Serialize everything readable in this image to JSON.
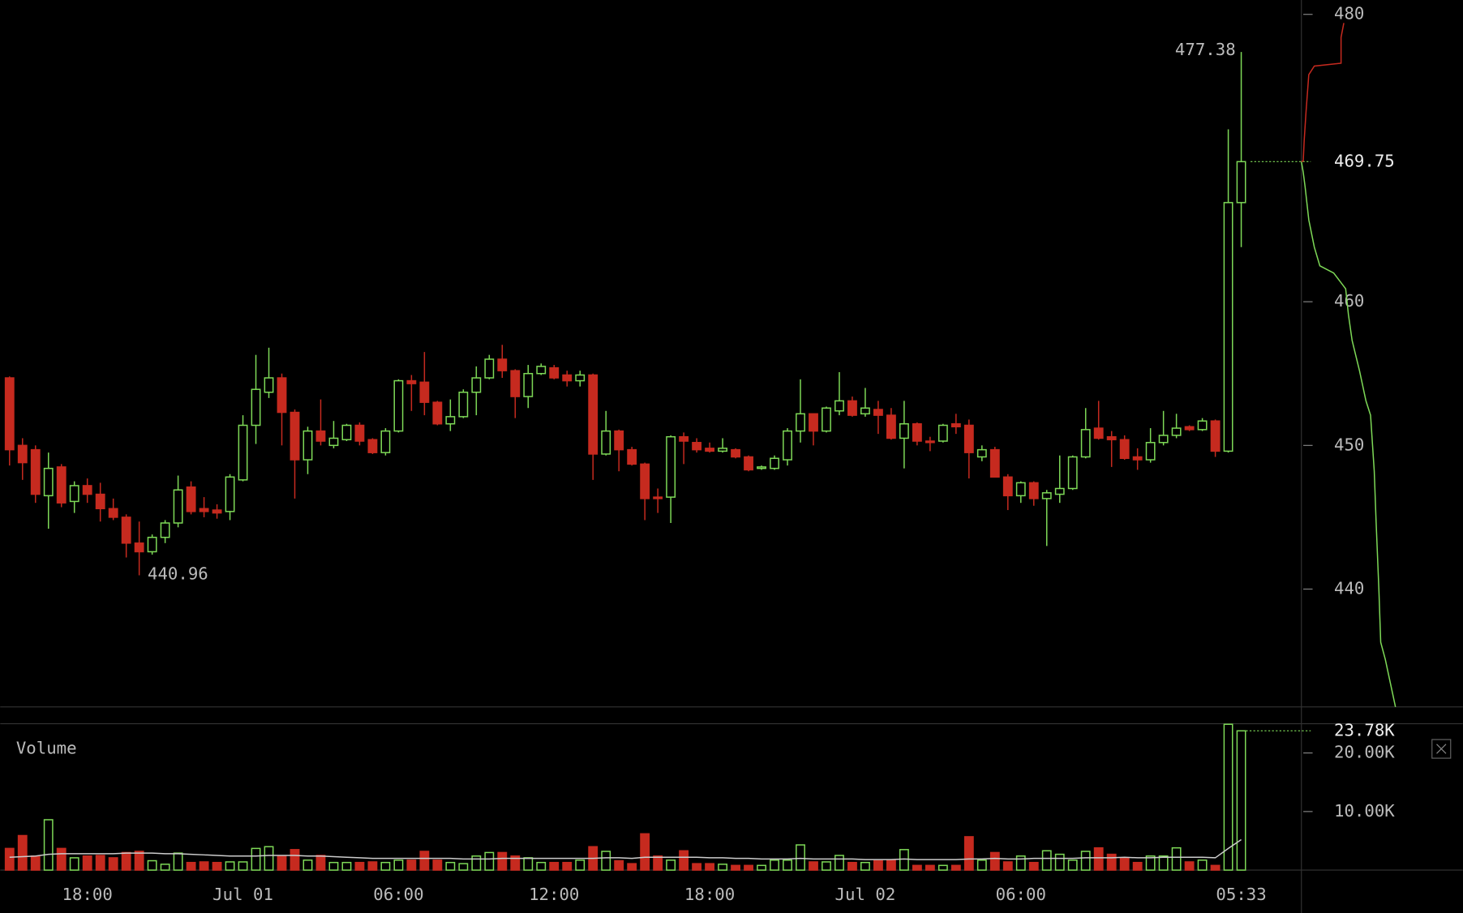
{
  "chart_data": {
    "type": "candlestick",
    "categories": [
      null,
      null,
      null,
      null,
      null,
      null,
      "18:00",
      null,
      null,
      null,
      null,
      null,
      null,
      null,
      null,
      null,
      null,
      null,
      "Jul 01",
      null,
      null,
      null,
      null,
      null,
      null,
      null,
      null,
      null,
      null,
      null,
      "06:00",
      null,
      null,
      null,
      null,
      null,
      null,
      null,
      null,
      null,
      null,
      null,
      "12:00",
      null,
      null,
      null,
      null,
      null,
      null,
      null,
      null,
      null,
      null,
      null,
      "18:00",
      null,
      null,
      null,
      null,
      null,
      null,
      null,
      null,
      null,
      null,
      null,
      "Jul 02",
      null,
      null,
      null,
      null,
      null,
      null,
      null,
      null,
      null,
      null,
      null,
      "06:00",
      null,
      null,
      null,
      null,
      null,
      null,
      null,
      null,
      null,
      null,
      null,
      null,
      null,
      null,
      null,
      null,
      "05:33"
    ],
    "open": [
      454.7,
      450.0,
      449.7,
      446.5,
      448.5,
      446.1,
      447.2,
      446.6,
      445.6,
      445.0,
      443.2,
      442.6,
      443.6,
      444.6,
      447.1,
      445.6,
      445.5,
      445.4,
      447.6,
      451.4,
      453.7,
      454.7,
      452.3,
      449.0,
      451.0,
      450.0,
      450.4,
      451.4,
      450.4,
      449.5,
      451.0,
      454.5,
      454.4,
      453.0,
      451.5,
      452.0,
      453.7,
      454.7,
      456.0,
      455.2,
      453.4,
      455.0,
      455.4,
      454.9,
      454.5,
      454.9,
      449.4,
      451.0,
      449.7,
      448.7,
      446.4,
      446.4,
      450.6,
      450.2,
      449.8,
      449.6,
      449.7,
      449.2,
      448.4,
      448.4,
      449.0,
      451.0,
      452.2,
      451.0,
      452.4,
      453.1,
      452.2,
      452.5,
      452.1,
      450.5,
      451.5,
      450.3,
      450.3,
      451.5,
      451.4,
      449.2,
      449.7,
      447.8,
      446.5,
      447.4,
      446.3,
      446.6,
      447.0,
      449.2,
      451.2,
      450.6,
      450.4,
      449.2,
      449.0,
      450.2,
      450.7,
      451.3,
      451.1,
      451.7,
      449.6,
      466.9
    ],
    "high": [
      454.8,
      450.5,
      450.0,
      449.5,
      448.7,
      447.5,
      447.7,
      447.4,
      446.3,
      445.2,
      444.7,
      443.8,
      444.8,
      447.9,
      447.5,
      446.4,
      445.9,
      448.0,
      452.1,
      456.3,
      456.8,
      455.0,
      452.5,
      451.3,
      453.2,
      451.7,
      451.5,
      451.6,
      450.5,
      451.2,
      454.6,
      454.9,
      456.5,
      453.1,
      453.2,
      453.9,
      455.5,
      456.3,
      457.0,
      455.3,
      455.6,
      455.7,
      455.6,
      455.2,
      455.2,
      455.0,
      452.4,
      451.1,
      449.9,
      448.8,
      447.0,
      450.7,
      450.9,
      450.5,
      450.2,
      450.5,
      449.8,
      449.3,
      448.6,
      449.3,
      451.2,
      454.6,
      452.2,
      452.7,
      455.1,
      453.4,
      454.0,
      453.1,
      452.6,
      453.1,
      451.6,
      450.6,
      451.5,
      452.2,
      451.8,
      450.0,
      449.9,
      448.0,
      447.5,
      447.5,
      446.9,
      449.3,
      449.3,
      452.6,
      453.1,
      451.0,
      450.7,
      449.8,
      451.2,
      452.4,
      452.2,
      451.4,
      451.9,
      451.8,
      472.0,
      477.38
    ],
    "low": [
      448.6,
      447.6,
      446.0,
      444.2,
      445.7,
      445.3,
      446.0,
      444.7,
      444.8,
      442.2,
      440.96,
      442.4,
      443.2,
      444.3,
      445.2,
      445.0,
      444.9,
      444.8,
      447.5,
      450.1,
      453.3,
      450.0,
      446.3,
      448.0,
      450.0,
      449.8,
      450.3,
      450.0,
      449.4,
      449.3,
      450.9,
      452.4,
      452.1,
      451.4,
      451.0,
      451.9,
      452.1,
      454.6,
      454.7,
      451.9,
      452.6,
      454.9,
      454.6,
      454.1,
      454.1,
      447.6,
      449.3,
      448.2,
      448.6,
      444.8,
      445.3,
      444.6,
      448.7,
      449.5,
      449.5,
      449.5,
      449.1,
      448.2,
      448.3,
      448.3,
      448.6,
      450.2,
      450.0,
      450.9,
      452.1,
      452.0,
      452.0,
      450.8,
      450.4,
      448.4,
      450.0,
      449.6,
      450.2,
      450.8,
      447.7,
      448.9,
      447.8,
      445.5,
      446.0,
      445.8,
      443.0,
      446.0,
      446.9,
      449.1,
      450.4,
      448.5,
      449.0,
      448.3,
      448.8,
      450.0,
      450.5,
      451.0,
      451.0,
      449.2,
      449.5,
      463.8
    ],
    "close": [
      449.7,
      448.8,
      446.6,
      448.4,
      446.0,
      447.2,
      446.6,
      445.6,
      445.0,
      443.2,
      442.6,
      443.6,
      444.6,
      446.9,
      445.4,
      445.4,
      445.3,
      447.8,
      451.4,
      453.9,
      454.7,
      452.3,
      449.0,
      451.0,
      450.3,
      450.5,
      451.4,
      450.3,
      449.5,
      451.0,
      454.5,
      454.3,
      453.0,
      451.5,
      452.0,
      453.7,
      454.7,
      456.0,
      455.2,
      453.4,
      455.0,
      455.5,
      454.7,
      454.5,
      454.9,
      449.4,
      451.0,
      449.7,
      448.7,
      446.3,
      446.3,
      450.6,
      450.3,
      449.7,
      449.6,
      449.8,
      449.2,
      448.3,
      448.5,
      449.1,
      451.0,
      452.2,
      451.0,
      452.6,
      453.1,
      452.1,
      452.6,
      452.1,
      450.5,
      451.5,
      450.3,
      450.2,
      451.4,
      451.3,
      449.5,
      449.7,
      447.8,
      446.5,
      447.4,
      446.3,
      446.7,
      447.0,
      449.2,
      451.1,
      450.5,
      450.4,
      449.1,
      449.0,
      450.2,
      450.7,
      451.2,
      451.1,
      451.7,
      449.6,
      466.9,
      469.75
    ],
    "up_color": "#7ed957",
    "down_color": "#c62a1f",
    "ylim": [
      431.8,
      481
    ],
    "yticks": [
      440,
      450,
      460,
      480
    ],
    "volume": {
      "title": "Volume",
      "values": [
        3700,
        5900,
        2400,
        8600,
        3700,
        2100,
        2400,
        2500,
        2100,
        3000,
        3200,
        1600,
        1000,
        2900,
        1300,
        1400,
        1300,
        1400,
        1400,
        3700,
        4000,
        2400,
        3500,
        1700,
        2500,
        1300,
        1300,
        1300,
        1400,
        1300,
        1700,
        1700,
        3200,
        1700,
        1300,
        1100,
        2400,
        3000,
        3000,
        2400,
        2100,
        1300,
        1300,
        1300,
        1700,
        4000,
        3200,
        1600,
        1100,
        6200,
        2400,
        1700,
        3300,
        1100,
        1100,
        1000,
        800,
        800,
        800,
        1700,
        1700,
        4300,
        1400,
        1400,
        2500,
        1300,
        1300,
        1600,
        1700,
        3500,
        800,
        800,
        800,
        800,
        5700,
        1700,
        3000,
        1400,
        2400,
        1300,
        3300,
        2700,
        1700,
        3200,
        3800,
        2700,
        2100,
        1300,
        2400,
        2400,
        3800,
        1400,
        1700,
        800,
        24900,
        23780
      ],
      "last_label": "23.78K",
      "ma": [
        2200,
        2300,
        2400,
        2700,
        2800,
        2800,
        2800,
        2800,
        2800,
        2900,
        2900,
        2900,
        2800,
        2800,
        2700,
        2600,
        2500,
        2400,
        2400,
        2400,
        2500,
        2500,
        2500,
        2400,
        2400,
        2300,
        2200,
        2100,
        2000,
        2000,
        2000,
        2000,
        2000,
        2000,
        2000,
        1900,
        1900,
        1900,
        2000,
        2000,
        2000,
        2000,
        2000,
        2000,
        2000,
        2000,
        2100,
        2100,
        2000,
        2200,
        2200,
        2200,
        2200,
        2200,
        2100,
        2100,
        2000,
        2000,
        1900,
        1900,
        1900,
        2000,
        1900,
        1900,
        1900,
        1900,
        1800,
        1800,
        1800,
        1900,
        1800,
        1800,
        1800,
        1800,
        1900,
        1900,
        2000,
        1900,
        1900,
        2000,
        2000,
        2000,
        2000,
        2100,
        2100,
        2100,
        2200,
        2100,
        2100,
        2200,
        2200,
        2200,
        2200,
        2100,
        3700,
        5200
      ],
      "ma_color": "#cccccc",
      "ylim": [
        0,
        25000
      ],
      "yticks": [
        {
          "value": 10000,
          "label": "10.00K"
        },
        {
          "value": 20000,
          "label": "20.00K"
        }
      ]
    },
    "depth": {
      "xlim": [
        0,
        350
      ],
      "bids": {
        "prices": [
          469.75,
          469.0,
          468.0,
          465.7,
          463.8,
          462.5,
          462.0,
          460.9,
          459.1,
          457.3,
          455.2,
          453.1,
          452.1,
          448.2,
          444.7,
          440.0,
          436.3,
          435.1,
          433.0,
          431.8
        ],
        "amounts": [
          0,
          4,
          8,
          16,
          28,
          40,
          70,
          96,
          102,
          110,
          126,
          140,
          150,
          158,
          162,
          168,
          172,
          182,
          196,
          204
        ]
      },
      "asks": {
        "prices": [
          469.75,
          469.8,
          471.2,
          473.2,
          475.8,
          476.4,
          476.6,
          478.4,
          479.4
        ],
        "amounts": [
          0,
          4,
          6,
          10,
          16,
          28,
          86,
          86,
          92
        ]
      }
    }
  }
}
